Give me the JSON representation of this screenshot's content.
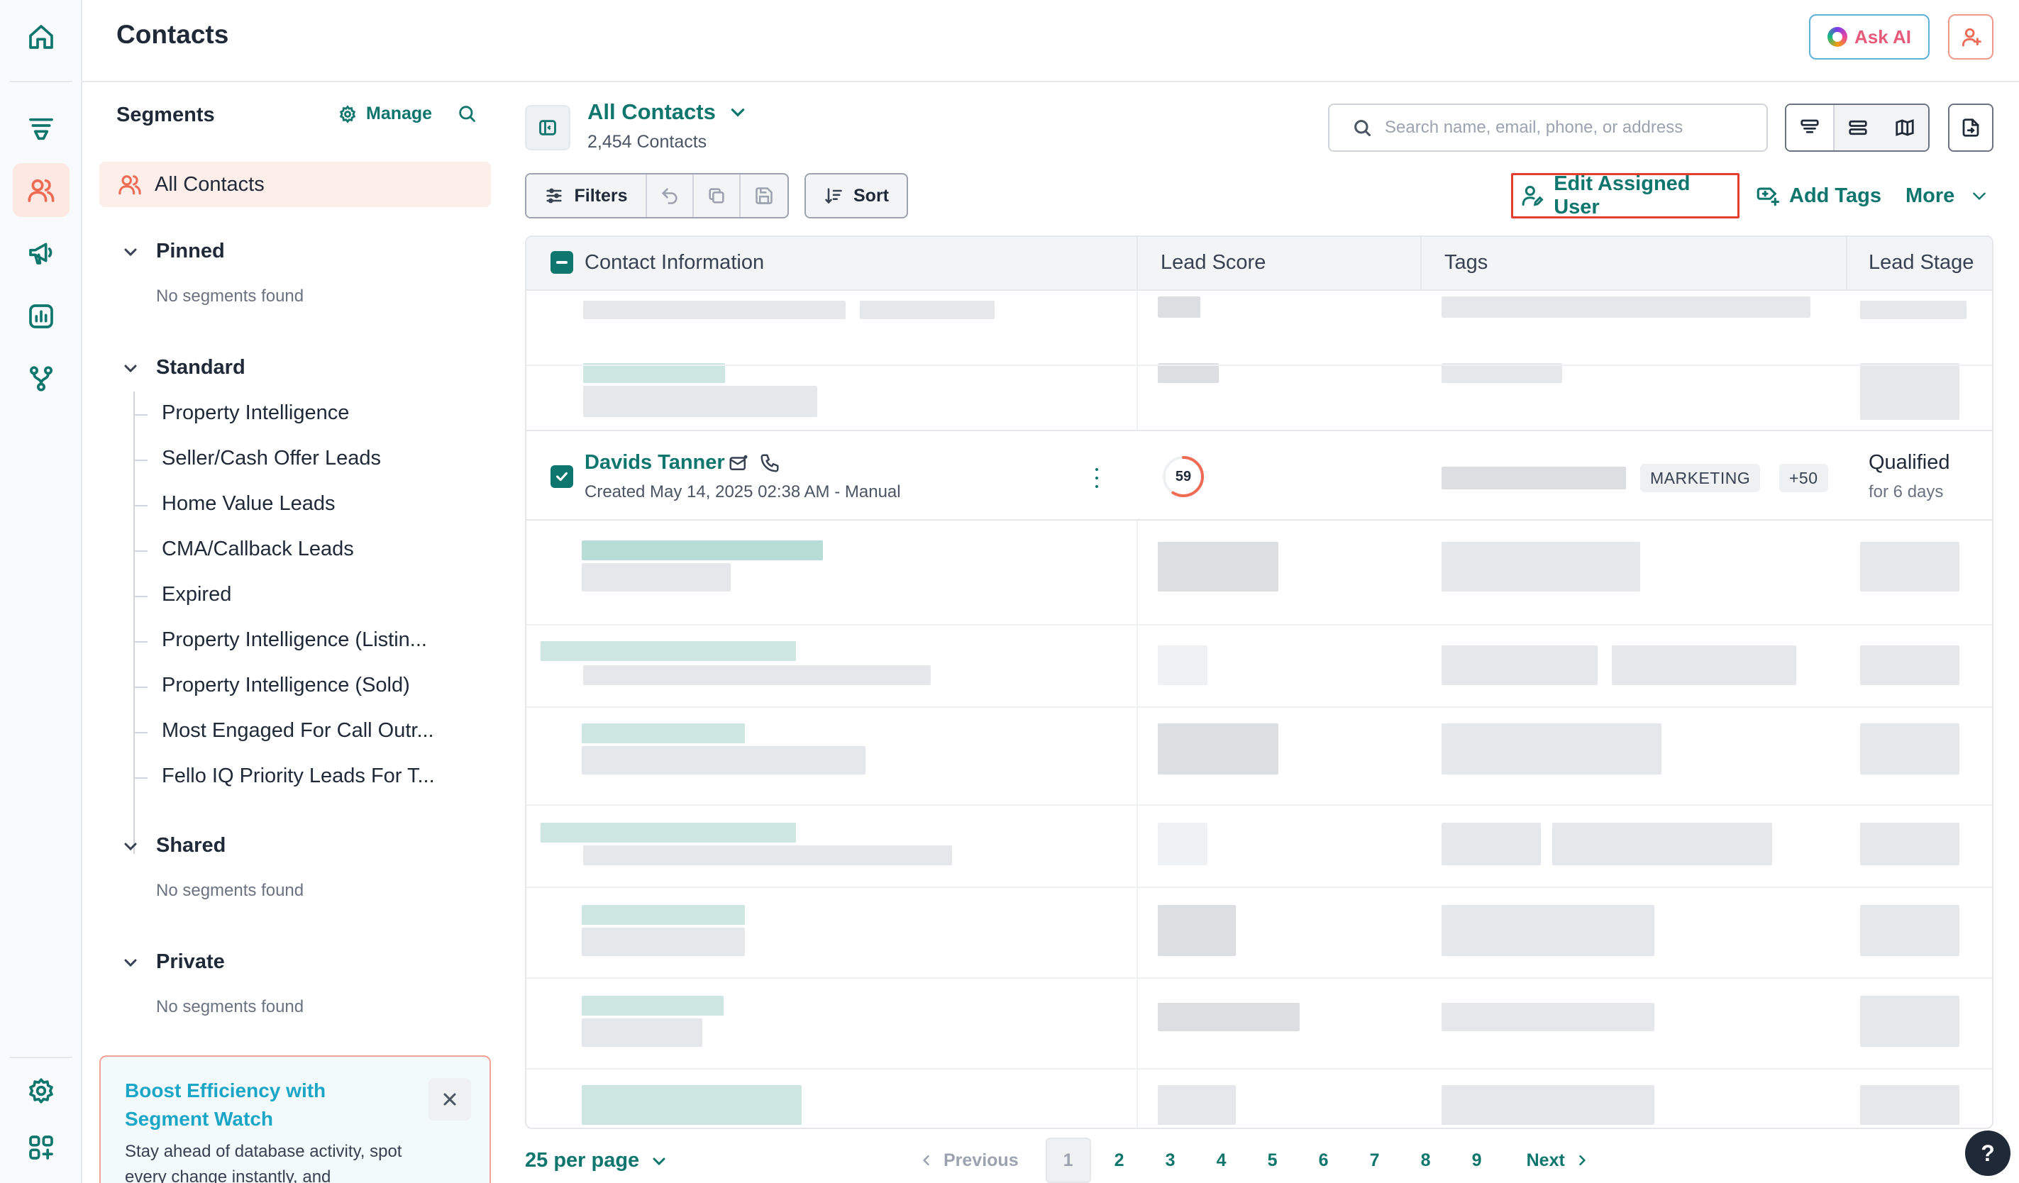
{
  "header": {
    "title": "Contacts",
    "ask_ai_label": "Ask AI"
  },
  "segments": {
    "title": "Segments",
    "manage_label": "Manage",
    "all_contacts_label": "All Contacts",
    "groups": [
      {
        "label": "Pinned",
        "empty_text": "No segments found"
      },
      {
        "label": "Standard",
        "items": [
          "Property Intelligence",
          "Seller/Cash Offer Leads",
          "Home Value Leads",
          "CMA/Callback Leads",
          "Expired",
          "Property Intelligence (Listin...",
          "Property Intelligence (Sold)",
          "Most Engaged For Call Outr...",
          "Fello IQ Priority Leads For T..."
        ]
      },
      {
        "label": "Shared",
        "empty_text": "No segments found"
      },
      {
        "label": "Private",
        "empty_text": "No segments found"
      }
    ],
    "promo": {
      "title": "Boost Efficiency with Segment Watch",
      "body": "Stay ahead of database activity, spot every change instantly, and"
    }
  },
  "view": {
    "title": "All Contacts",
    "count": "2,454 Contacts",
    "search_placeholder": "Search name, email, phone, or address"
  },
  "toolbar": {
    "filters_label": "Filters",
    "sort_label": "Sort",
    "edit_assigned_label": "Edit Assigned User",
    "add_tags_label": "Add Tags",
    "more_label": "More"
  },
  "table": {
    "columns": [
      "Contact Information",
      "Lead Score",
      "Tags",
      "Lead Stage"
    ],
    "visible_row": {
      "name": "Davids Tanner",
      "created": "Created May 14, 2025 02:38 AM - Manual",
      "lead_score": 59,
      "lead_score_max": 100,
      "tags": [
        "MARKETING",
        "+50"
      ],
      "stage": "Qualified",
      "stage_duration": "for 6 days"
    }
  },
  "pagination": {
    "per_page_label": "25 per page",
    "prev_label": "Previous",
    "next_label": "Next",
    "pages": [
      "1",
      "2",
      "3",
      "4",
      "5",
      "6",
      "7",
      "8",
      "9"
    ],
    "current_page": "1"
  },
  "help_label": "?",
  "colors": {
    "brand_teal": "#0f766e",
    "accent_coral": "#ef6b54",
    "highlight_red": "#e53e2f"
  }
}
